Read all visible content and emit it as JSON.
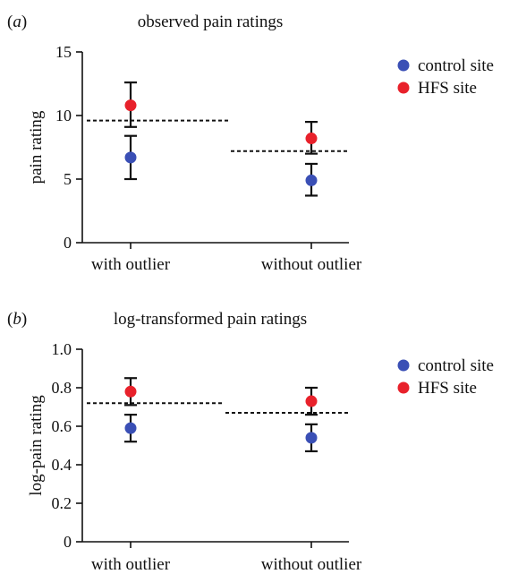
{
  "chart_data": [
    {
      "panel_label": "(a)",
      "type": "scatter",
      "title": "observed pain ratings",
      "ylabel": "pain rating",
      "xlabel": "",
      "categories": [
        "with outlier",
        "without outlier"
      ],
      "ylim": [
        0,
        15
      ],
      "yticks": [
        0,
        5,
        10,
        15
      ],
      "ytick_labels": [
        "0",
        "5",
        "10",
        "15"
      ],
      "series": [
        {
          "name": "control site",
          "color": "#3a4fb5",
          "values": [
            6.7,
            4.9
          ],
          "err_low": [
            5.0,
            3.7
          ],
          "err_high": [
            8.4,
            6.2
          ]
        },
        {
          "name": "HFS site",
          "color": "#e8212b",
          "values": [
            10.8,
            8.2
          ],
          "err_low": [
            9.1,
            7.0
          ],
          "err_high": [
            12.6,
            9.5
          ]
        }
      ],
      "mean_lines": [
        9.6,
        7.2
      ],
      "legend": "right"
    },
    {
      "panel_label": "(b)",
      "type": "scatter",
      "title": "log-transformed pain ratings",
      "ylabel": "log-pain rating",
      "xlabel": "",
      "categories": [
        "with outlier",
        "without outlier"
      ],
      "ylim": [
        0,
        1.0
      ],
      "yticks": [
        0,
        0.2,
        0.4,
        0.6,
        0.8,
        1.0
      ],
      "ytick_labels": [
        "0",
        "0.2",
        "0.4",
        "0.6",
        "0.8",
        "1.0"
      ],
      "series": [
        {
          "name": "control site",
          "color": "#3a4fb5",
          "values": [
            0.59,
            0.54
          ],
          "err_low": [
            0.52,
            0.47
          ],
          "err_high": [
            0.66,
            0.61
          ]
        },
        {
          "name": "HFS site",
          "color": "#e8212b",
          "values": [
            0.78,
            0.73
          ],
          "err_low": [
            0.71,
            0.66
          ],
          "err_high": [
            0.85,
            0.8
          ]
        }
      ],
      "mean_lines": [
        0.72,
        0.67
      ],
      "legend": "right"
    }
  ]
}
